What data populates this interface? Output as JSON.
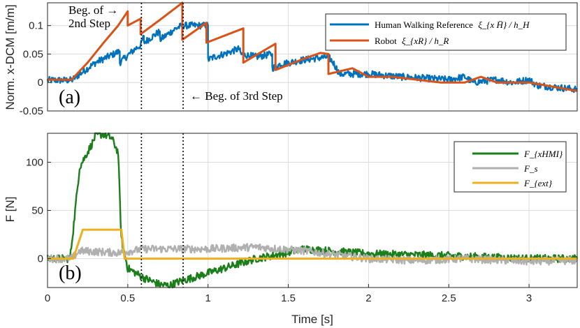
{
  "chart_data": [
    {
      "type": "line",
      "panel_label": "(a)",
      "ylabel": "Norm. x-DCM [m/m]",
      "xlim": [
        0,
        3.3
      ],
      "ylim": [
        -0.05,
        0.14
      ],
      "yticks": [
        -0.05,
        0,
        0.05,
        0.1
      ],
      "ytick_labels": [
        "-0.05",
        "0",
        "0.05",
        "0.1"
      ],
      "grid": true,
      "legend": "top-right",
      "series": [
        {
          "name": "Human Walking Reference",
          "legend_math": "ξ_{x H̄} / h_H",
          "color": "#0072BD",
          "noisy": true,
          "x": [
            0,
            0.15,
            0.25,
            0.3,
            0.45,
            0.45,
            0.55,
            0.58,
            0.6,
            0.6,
            0.7,
            0.7,
            0.8,
            0.84,
            0.88,
            0.9,
            1.0,
            1.0,
            1.04,
            1.1,
            1.15,
            1.2,
            1.2,
            1.3,
            1.4,
            1.4,
            1.45,
            1.6,
            1.75,
            1.78,
            1.82,
            2.0,
            2.2,
            2.5,
            2.6,
            2.65,
            2.8,
            2.9,
            3.0,
            3.05,
            3.15,
            3.3
          ],
          "y": [
            0.004,
            0.004,
            0.025,
            0.035,
            0.055,
            0.035,
            0.06,
            0.065,
            0.082,
            0.07,
            0.09,
            0.075,
            0.095,
            0.1,
            0.1,
            0.1,
            0.1,
            0.04,
            0.045,
            0.05,
            0.055,
            0.06,
            0.05,
            0.045,
            0.05,
            0.025,
            0.032,
            0.04,
            0.045,
            0.035,
            0.015,
            0.015,
            0.01,
            0.005,
            0.01,
            0.0,
            0.005,
            0.0,
            0.005,
            -0.005,
            -0.008,
            -0.012
          ]
        },
        {
          "name": "Robot",
          "legend_math": "ξ_{xR} / h_R",
          "color": "#D95319",
          "noisy": false,
          "x": [
            0,
            0.15,
            0.25,
            0.35,
            0.44,
            0.5,
            0.5,
            0.58,
            0.58,
            0.7,
            0.84,
            0.84,
            0.99,
            0.99,
            1.22,
            1.22,
            1.42,
            1.42,
            1.6,
            1.7,
            1.75,
            1.75,
            1.9,
            2.0,
            2.15,
            2.3,
            2.45,
            2.6,
            2.7,
            2.8,
            3.0,
            3.3
          ],
          "y": [
            0.005,
            0.005,
            0.035,
            0.07,
            0.1,
            0.125,
            0.1,
            0.112,
            0.085,
            0.11,
            0.14,
            0.075,
            0.105,
            0.07,
            0.095,
            0.035,
            0.068,
            0.022,
            0.042,
            0.052,
            0.05,
            0.015,
            0.025,
            0.01,
            0.01,
            0.005,
            0.0,
            0.0,
            0.01,
            0.0,
            0.0,
            -0.015
          ]
        }
      ],
      "vlines": [
        0.585,
        0.845
      ],
      "annotations": [
        {
          "text_line1": "Beg. of →",
          "text_line2": "2nd Step",
          "x": 0.585
        },
        {
          "text": "← Beg. of 3rd Step",
          "x": 0.845
        }
      ]
    },
    {
      "type": "line",
      "panel_label": "(b)",
      "xlabel": "Time [s]",
      "ylabel": "F [N]",
      "xlim": [
        0,
        3.3
      ],
      "ylim": [
        -30,
        130
      ],
      "xticks": [
        0,
        0.5,
        1,
        1.5,
        2,
        2.5,
        3
      ],
      "xtick_labels": [
        "0",
        "0.5",
        "1",
        "1.5",
        "2",
        "2.5",
        "3"
      ],
      "yticks": [
        0,
        50,
        100
      ],
      "ytick_labels": [
        "0",
        "50",
        "100"
      ],
      "grid": true,
      "legend": "top-right",
      "series": [
        {
          "name": "F_xHMI",
          "legend_math": "F_{xHMI}",
          "color": "#1A7F1A",
          "noisy": true,
          "x": [
            0,
            0.14,
            0.16,
            0.2,
            0.28,
            0.3,
            0.35,
            0.4,
            0.44,
            0.46,
            0.5,
            0.6,
            0.7,
            0.76,
            0.8,
            0.9,
            1.0,
            1.2,
            1.3,
            1.4,
            1.6,
            2.0,
            2.5,
            3.0,
            3.3
          ],
          "y": [
            0,
            0,
            30,
            95,
            120,
            128,
            129,
            125,
            110,
            20,
            -10,
            -20,
            -27,
            -28,
            -25,
            -20,
            -15,
            -5,
            0,
            3,
            10,
            5,
            3,
            0,
            0
          ]
        },
        {
          "name": "F_s",
          "legend_math": "F_s",
          "color": "#B0B0B0",
          "noisy": true,
          "x": [
            0,
            0.15,
            0.2,
            0.45,
            0.6,
            0.8,
            1.0,
            1.3,
            1.6,
            1.8,
            2.0,
            2.3,
            2.6,
            3.0,
            3.3
          ],
          "y": [
            0,
            0,
            8,
            6,
            10,
            10,
            10,
            12,
            8,
            4,
            0,
            -2,
            0,
            -3,
            -2
          ]
        },
        {
          "name": "F_ext",
          "legend_math": "F_{ext}",
          "color": "#EDB120",
          "noisy": false,
          "x": [
            0,
            0.16,
            0.22,
            0.46,
            0.48,
            3.3
          ],
          "y": [
            0,
            0,
            30,
            30,
            0,
            0
          ]
        }
      ],
      "vlines": [
        0.585,
        0.845
      ]
    }
  ]
}
